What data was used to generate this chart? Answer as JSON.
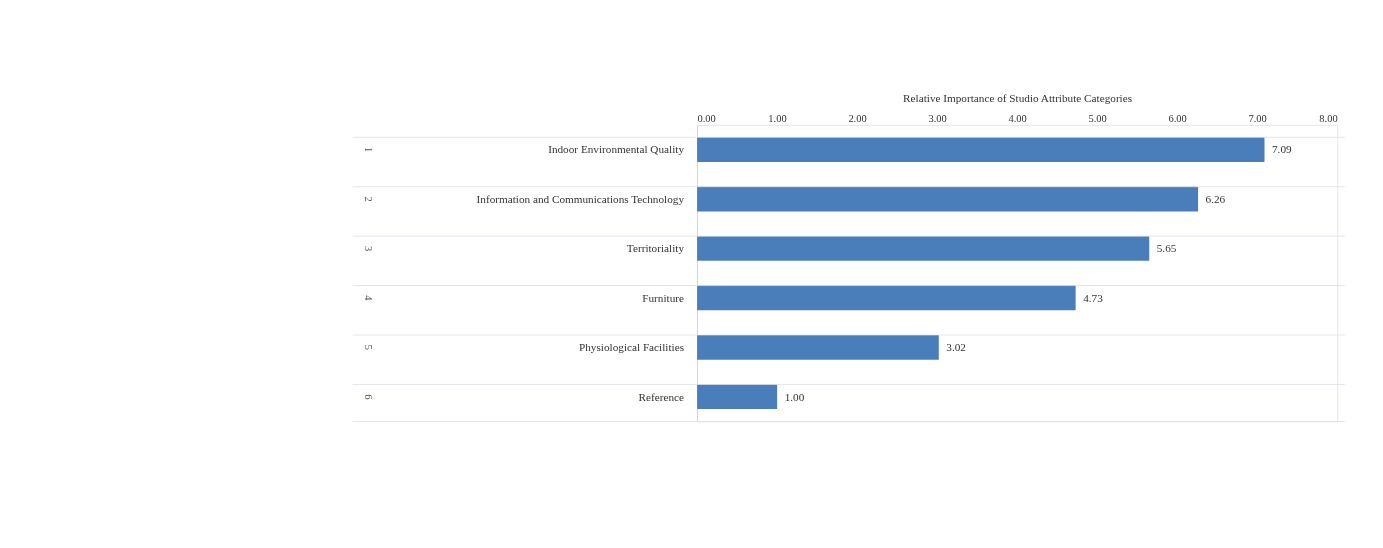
{
  "chart_data": {
    "type": "bar",
    "orientation": "horizontal",
    "xlabel": "Relative Importance of Studio Attribute Categories",
    "categories": [
      "Indoor Environmental Quality",
      "Information and Communications Technology",
      "Territoriality",
      "Furniture",
      "Physiological Facilities",
      "Reference"
    ],
    "values": [
      7.09,
      6.26,
      5.65,
      4.73,
      3.02,
      1.0
    ],
    "value_labels": [
      "7.09",
      "6.26",
      "5.65",
      "4.73",
      "3.02",
      "1.00"
    ],
    "color": "#4a7ebb",
    "xlim": [
      0,
      8
    ],
    "xticks": [
      {
        "value": 0,
        "label": "0.00"
      },
      {
        "value": 1,
        "label": "1.00"
      },
      {
        "value": 2,
        "label": "2.00"
      },
      {
        "value": 3,
        "label": "3.00"
      },
      {
        "value": 4,
        "label": "4.00"
      },
      {
        "value": 5,
        "label": "5.00"
      },
      {
        "value": 6,
        "label": "6.00"
      },
      {
        "value": 7,
        "label": "7.00"
      },
      {
        "value": 8,
        "label": "8.00"
      }
    ],
    "annotations": [
      "1",
      "2",
      "3",
      "4",
      "5",
      "6"
    ],
    "grid": "y"
  }
}
